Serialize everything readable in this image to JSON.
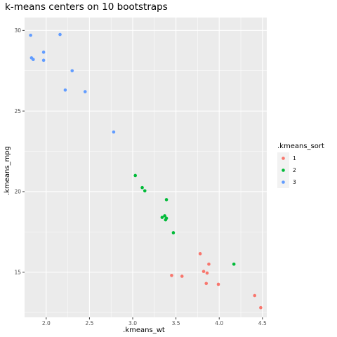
{
  "chart_data": {
    "type": "scatter",
    "title": "k-means centers on 10 bootstraps",
    "xlabel": ".kmeans_wt",
    "ylabel": ".kmeans_mpg",
    "xlim": [
      1.75,
      4.55
    ],
    "ylim": [
      12.2,
      30.8
    ],
    "x_ticks": [
      2.0,
      2.5,
      3.0,
      3.5,
      4.0,
      4.5
    ],
    "x_tick_labels": [
      "2.0",
      "2.5",
      "3.0",
      "3.5",
      "4.0",
      "4.5"
    ],
    "y_ticks": [
      15,
      20,
      25,
      30
    ],
    "y_tick_labels": [
      "15",
      "20",
      "25",
      "30"
    ],
    "grid": true,
    "background": "#ebebeb",
    "legend": {
      "title": ".kmeans_sort",
      "placement": "right",
      "entries": [
        {
          "label": "1",
          "color": "#f8766d"
        },
        {
          "label": "2",
          "color": "#00ba38"
        },
        {
          "label": "3",
          "color": "#619cff"
        }
      ]
    },
    "series": [
      {
        "name": "1",
        "color": "#f8766d",
        "points": [
          [
            3.45,
            14.8
          ],
          [
            3.57,
            14.75
          ],
          [
            3.78,
            16.15
          ],
          [
            3.82,
            15.05
          ],
          [
            3.86,
            14.95
          ],
          [
            3.88,
            15.5
          ],
          [
            3.85,
            14.3
          ],
          [
            3.99,
            14.25
          ],
          [
            4.41,
            13.55
          ],
          [
            4.48,
            12.8
          ]
        ]
      },
      {
        "name": "2",
        "color": "#00ba38",
        "points": [
          [
            3.03,
            21.0
          ],
          [
            3.11,
            20.25
          ],
          [
            3.14,
            20.05
          ],
          [
            3.39,
            19.5
          ],
          [
            3.34,
            18.4
          ],
          [
            3.37,
            18.5
          ],
          [
            3.38,
            18.25
          ],
          [
            3.39,
            18.35
          ],
          [
            3.47,
            17.45
          ],
          [
            4.17,
            15.5
          ]
        ]
      },
      {
        "name": "3",
        "color": "#619cff",
        "points": [
          [
            1.82,
            29.7
          ],
          [
            2.16,
            29.75
          ],
          [
            1.83,
            28.3
          ],
          [
            1.85,
            28.2
          ],
          [
            1.97,
            28.65
          ],
          [
            1.97,
            28.15
          ],
          [
            2.3,
            27.5
          ],
          [
            2.22,
            26.3
          ],
          [
            2.45,
            26.2
          ],
          [
            2.78,
            23.7
          ]
        ]
      }
    ]
  }
}
